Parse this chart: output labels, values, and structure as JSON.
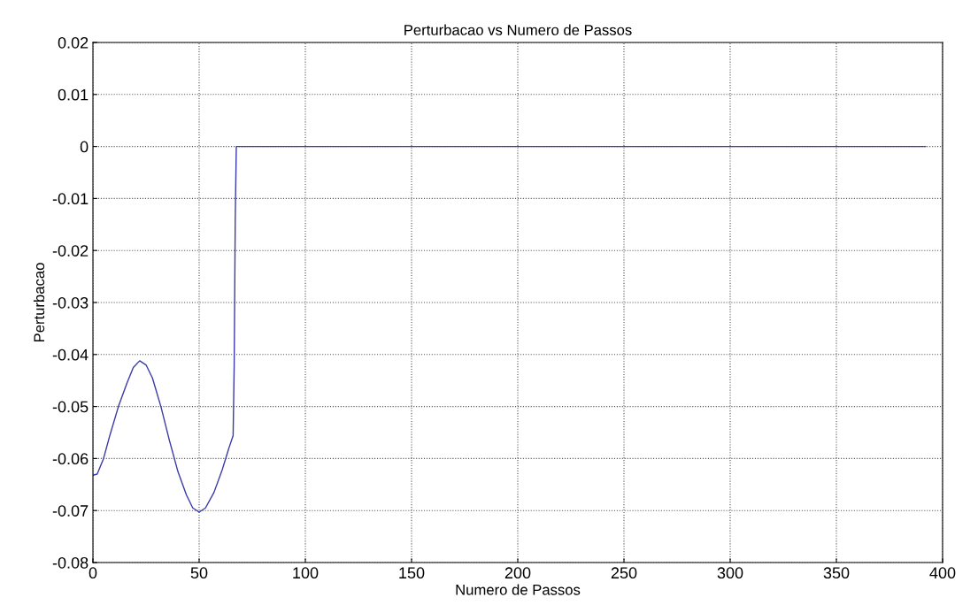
{
  "chart_data": {
    "type": "line",
    "title": "Perturbacao vs Numero de Passos",
    "xlabel": "Numero de Passos",
    "ylabel": "Perturbacao",
    "series": [
      {
        "color": "#3a3aa8",
        "x": [
          0,
          2,
          5,
          8,
          12,
          16,
          19,
          22,
          25,
          28,
          32,
          36,
          40,
          44,
          47,
          50,
          53,
          57,
          61,
          64,
          66,
          66.5,
          67,
          67.5,
          392
        ],
        "values": [
          -0.0632,
          -0.063,
          -0.06,
          -0.0555,
          -0.05,
          -0.0455,
          -0.0425,
          -0.0412,
          -0.042,
          -0.0445,
          -0.05,
          -0.0565,
          -0.0625,
          -0.067,
          -0.0695,
          -0.0703,
          -0.0695,
          -0.0665,
          -0.062,
          -0.058,
          -0.0556,
          -0.042,
          -0.014,
          0,
          0
        ]
      }
    ],
    "xlim": [
      0,
      400
    ],
    "xticks": [
      0,
      50,
      100,
      150,
      200,
      250,
      300,
      350,
      400
    ],
    "ylim": [
      -0.08,
      0.02
    ],
    "yticks": [
      -0.08,
      -0.07,
      -0.06,
      -0.05,
      -0.04,
      -0.03,
      -0.02,
      -0.01,
      0,
      0.01,
      0.02
    ],
    "grid": true,
    "line_style": "solid",
    "marker": "none"
  }
}
